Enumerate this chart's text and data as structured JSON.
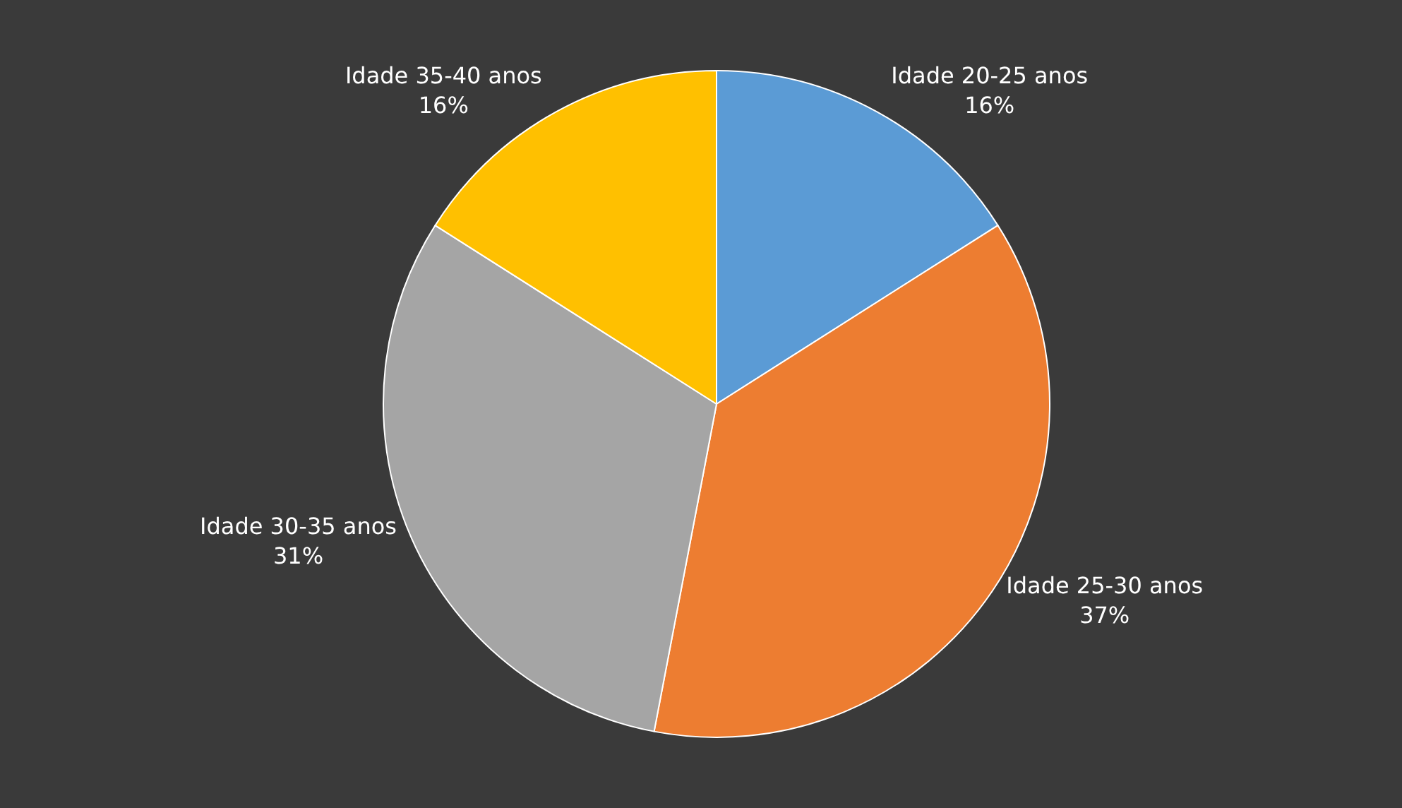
{
  "chart_data": {
    "type": "pie",
    "categories": [
      "Idade 20-25 anos",
      "Idade 25-30 anos",
      "Idade 30-35 anos",
      "Idade 35-40 anos"
    ],
    "values": [
      16,
      37,
      31,
      16
    ],
    "value_labels": [
      "16%",
      "37%",
      "31%",
      "16%"
    ],
    "colors": [
      "#5b9bd5",
      "#ed7d31",
      "#a5a5a5",
      "#ffc000"
    ],
    "legend": false
  }
}
